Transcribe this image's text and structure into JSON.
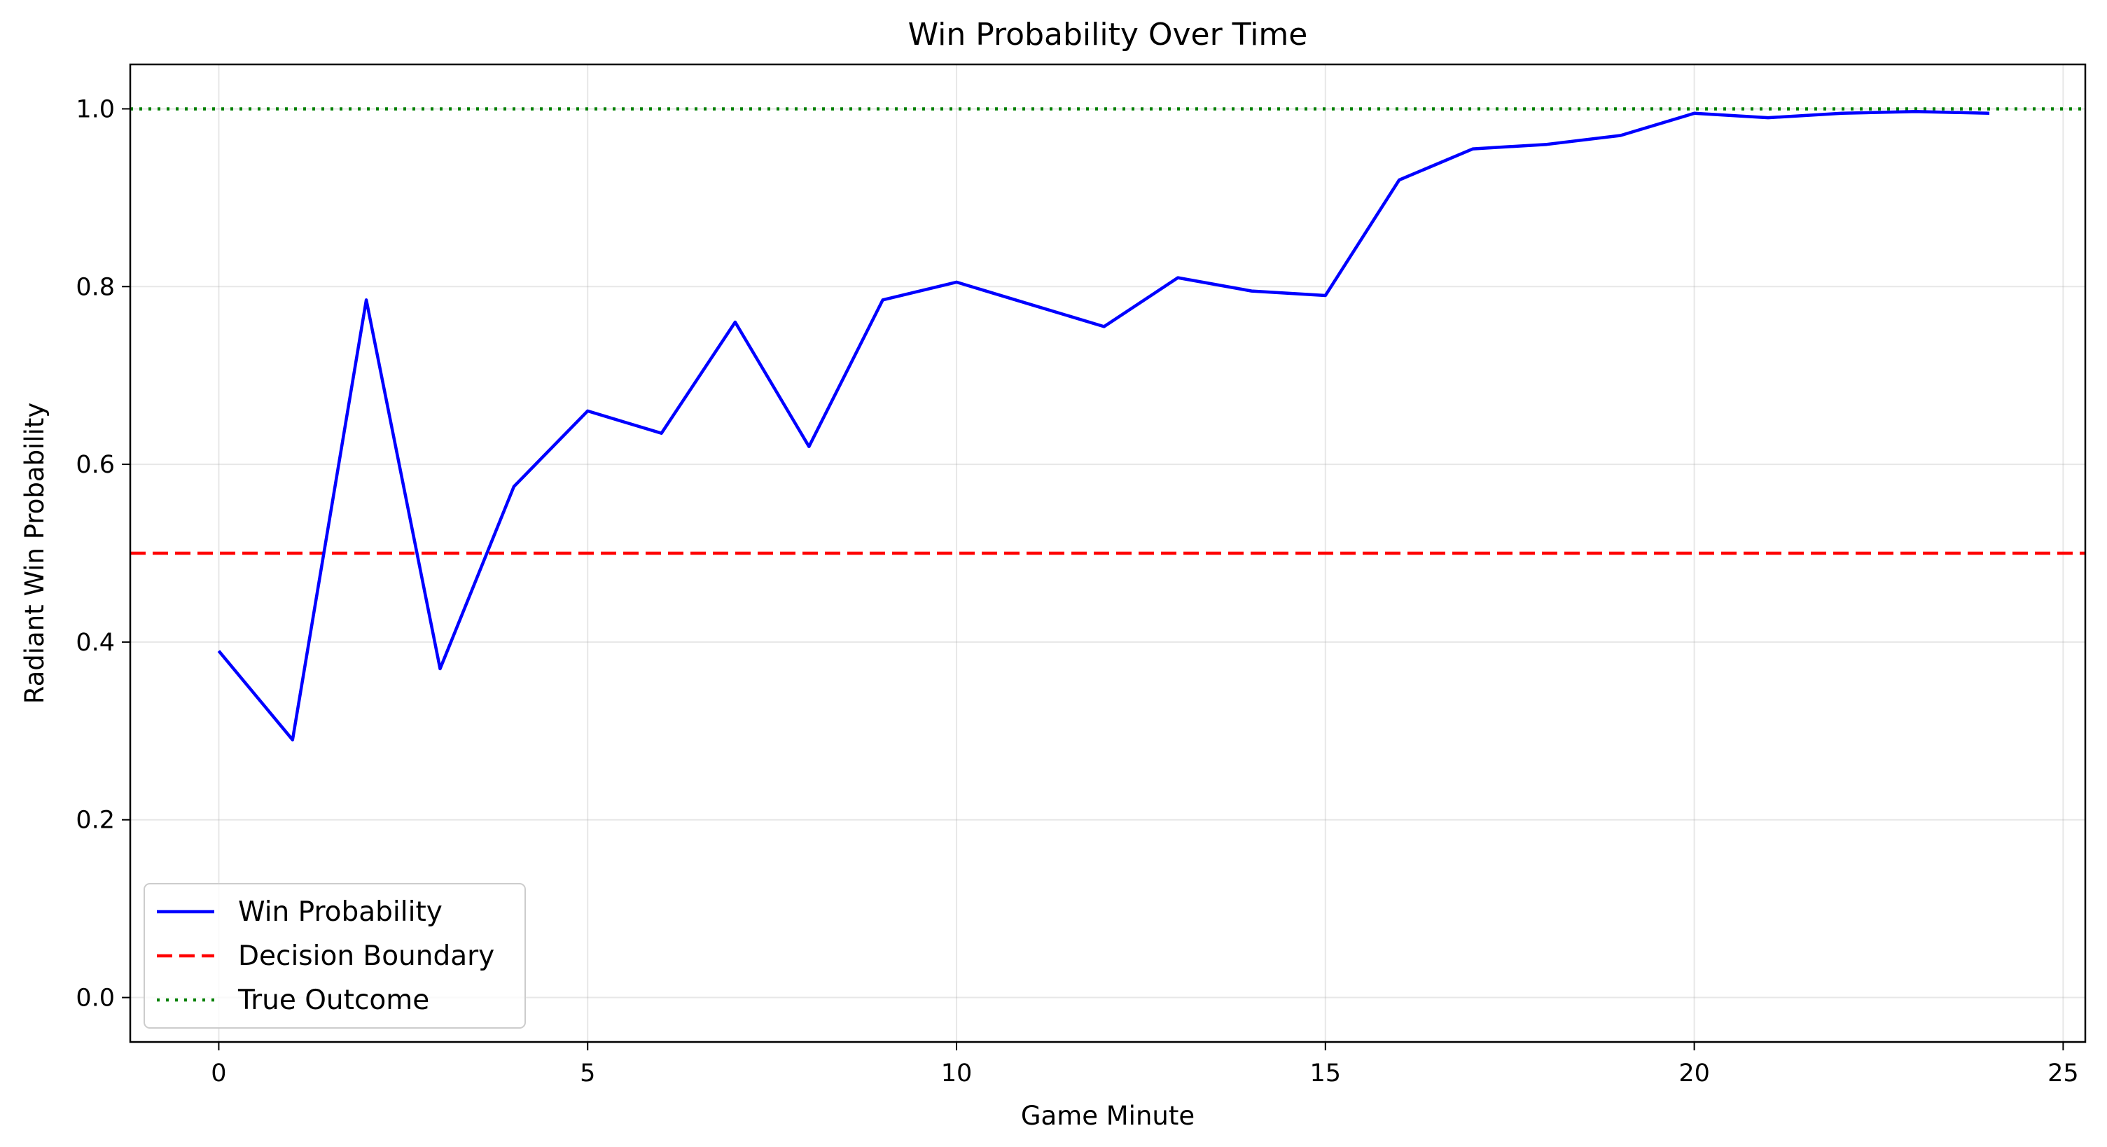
{
  "chart_data": {
    "type": "line",
    "title": "Win Probability Over Time",
    "xlabel": "Game Minute",
    "ylabel": "Radiant Win Probability",
    "xlim": [
      -1.2,
      25.3
    ],
    "ylim": [
      -0.05,
      1.05
    ],
    "xticks": [
      0,
      5,
      10,
      15,
      20,
      25
    ],
    "yticks": [
      0.0,
      0.2,
      0.4,
      0.6,
      0.8,
      1.0
    ],
    "xtick_labels": [
      "0",
      "5",
      "10",
      "15",
      "20",
      "25"
    ],
    "ytick_labels": [
      "0.0",
      "0.2",
      "0.4",
      "0.6",
      "0.8",
      "1.0"
    ],
    "grid": true,
    "legend_position": "lower-left",
    "series": [
      {
        "name": "Win Probability",
        "style": "solid",
        "color": "#0000ff",
        "x": [
          0,
          1,
          2,
          3,
          4,
          5,
          6,
          7,
          8,
          9,
          10,
          11,
          12,
          13,
          14,
          15,
          16,
          17,
          18,
          19,
          20,
          21,
          22,
          23,
          24
        ],
        "y": [
          0.39,
          0.29,
          0.785,
          0.37,
          0.575,
          0.66,
          0.635,
          0.76,
          0.62,
          0.785,
          0.805,
          0.78,
          0.755,
          0.81,
          0.795,
          0.79,
          0.92,
          0.955,
          0.96,
          0.97,
          0.995,
          0.99,
          0.995,
          0.997,
          0.995
        ]
      },
      {
        "name": "Decision Boundary",
        "style": "dashed",
        "color": "#ff0000",
        "y_constant": 0.5
      },
      {
        "name": "True Outcome",
        "style": "dotted",
        "color": "#008000",
        "y_constant": 1.0
      }
    ]
  }
}
